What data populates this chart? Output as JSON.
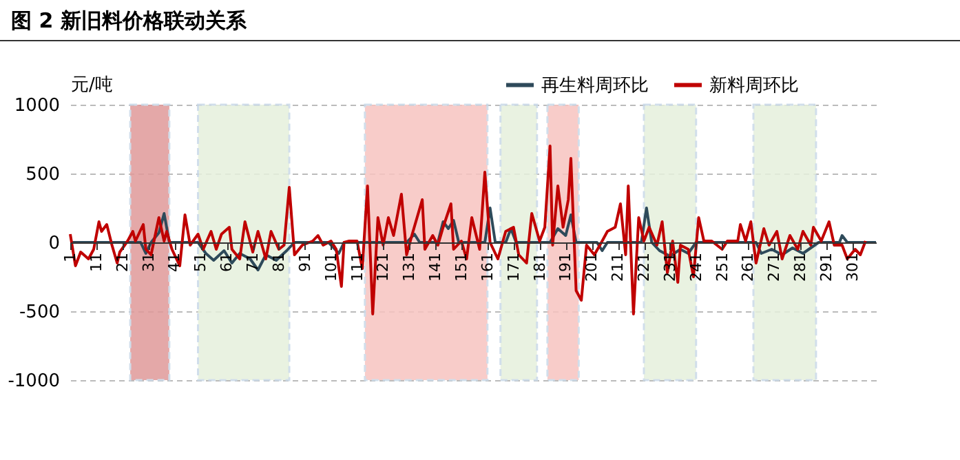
{
  "chart_data": {
    "type": "line",
    "title": "图 2 新旧料价格联动关系",
    "ylabel": "元/吨",
    "xlim": [
      1,
      310
    ],
    "xticks": [
      1,
      11,
      21,
      31,
      41,
      51,
      61,
      71,
      81,
      91,
      101,
      111,
      121,
      131,
      141,
      151,
      161,
      171,
      181,
      191,
      201,
      211,
      221,
      231,
      241,
      251,
      261,
      271,
      281,
      291,
      301
    ],
    "ylim": [
      -1000,
      1000
    ],
    "yticks": [
      -1000,
      -500,
      0,
      500,
      1000
    ],
    "grid": "y",
    "legend": "top right",
    "line_style": "solid",
    "marker": "none",
    "bands": [
      {
        "axis": "x",
        "from": 24,
        "to": 39,
        "color": "#e09a9a"
      },
      {
        "axis": "x",
        "from": 50,
        "to": 85,
        "color": "#e6f0dc"
      },
      {
        "axis": "x",
        "from": 114,
        "to": 161,
        "color": "#f7c4c0"
      },
      {
        "axis": "x",
        "from": 166,
        "to": 180,
        "color": "#e6f0dc"
      },
      {
        "axis": "x",
        "from": 184,
        "to": 196,
        "color": "#f7c4c0"
      },
      {
        "axis": "x",
        "from": 221,
        "to": 241,
        "color": "#e6f0dc"
      },
      {
        "axis": "x",
        "from": 263,
        "to": 287,
        "color": "#e6f0dc"
      }
    ],
    "series": [
      {
        "name": "再生料周环比",
        "color": "#2e4a5a",
        "x": [
          1,
          28,
          30,
          32,
          35,
          37,
          39,
          50,
          53,
          56,
          60,
          63,
          66,
          70,
          73,
          76,
          80,
          84,
          87,
          100,
          104,
          106,
          130,
          133,
          135,
          142,
          144,
          146,
          148,
          150,
          160,
          162,
          164,
          168,
          170,
          172,
          185,
          188,
          191,
          193,
          195,
          203,
          205,
          207,
          220,
          222,
          224,
          227,
          231,
          235,
          238,
          241,
          264,
          266,
          270,
          274,
          278,
          282,
          285,
          288,
          296,
          297,
          299,
          310
        ],
        "values": [
          0,
          0,
          -80,
          0,
          70,
          210,
          0,
          0,
          -80,
          -130,
          -60,
          -150,
          -80,
          -120,
          -200,
          -90,
          -130,
          -60,
          0,
          0,
          -80,
          0,
          0,
          60,
          0,
          0,
          150,
          100,
          160,
          0,
          0,
          250,
          0,
          0,
          100,
          0,
          0,
          100,
          50,
          200,
          0,
          0,
          -60,
          0,
          0,
          250,
          0,
          -60,
          -100,
          -50,
          -80,
          0,
          0,
          -80,
          -50,
          -90,
          -40,
          -80,
          -40,
          0,
          0,
          50,
          0,
          0
        ]
      },
      {
        "name": "新料周环比",
        "color": "#c00000",
        "x": [
          1,
          3,
          5,
          8,
          10,
          12,
          13,
          15,
          17,
          19,
          20,
          23,
          25,
          26,
          29,
          30,
          32,
          35,
          37,
          38,
          40,
          43,
          45,
          47,
          50,
          52,
          55,
          57,
          59,
          62,
          63,
          66,
          68,
          71,
          73,
          76,
          78,
          81,
          83,
          85,
          87,
          90,
          94,
          96,
          98,
          101,
          103,
          105,
          106,
          108,
          111,
          113,
          115,
          117,
          119,
          121,
          123,
          125,
          128,
          130,
          132,
          136,
          137,
          140,
          142,
          144,
          147,
          148,
          151,
          153,
          155,
          158,
          160,
          162,
          165,
          168,
          171,
          173,
          176,
          178,
          181,
          183,
          185,
          186,
          188,
          190,
          192,
          193,
          195,
          197,
          199,
          202,
          205,
          207,
          210,
          212,
          214,
          215,
          217,
          219,
          221,
          223,
          226,
          228,
          230,
          232,
          234,
          235,
          238,
          240,
          242,
          244,
          247,
          251,
          253,
          257,
          258,
          260,
          262,
          264,
          267,
          269,
          272,
          274,
          277,
          280,
          282,
          285,
          286,
          289,
          292,
          294,
          297,
          299,
          302,
          304,
          306
        ],
        "values": [
          60,
          -170,
          -70,
          -120,
          -50,
          150,
          80,
          130,
          -20,
          -150,
          -70,
          10,
          80,
          10,
          130,
          -50,
          -90,
          180,
          10,
          80,
          -50,
          -170,
          200,
          -20,
          60,
          -50,
          80,
          -50,
          60,
          110,
          -50,
          -120,
          150,
          -70,
          80,
          -120,
          80,
          -50,
          -20,
          400,
          -90,
          -20,
          10,
          50,
          -20,
          10,
          -50,
          -320,
          0,
          10,
          10,
          -190,
          410,
          -520,
          180,
          -20,
          180,
          50,
          350,
          -90,
          50,
          310,
          -50,
          50,
          -20,
          110,
          280,
          -50,
          10,
          -120,
          180,
          -50,
          510,
          0,
          -120,
          80,
          110,
          -90,
          -150,
          210,
          10,
          110,
          700,
          -20,
          410,
          110,
          310,
          610,
          -350,
          -420,
          -20,
          -90,
          10,
          80,
          110,
          280,
          -90,
          410,
          -520,
          180,
          10,
          110,
          -20,
          150,
          -220,
          10,
          -290,
          -20,
          -50,
          -250,
          180,
          10,
          10,
          -50,
          10,
          10,
          130,
          10,
          150,
          -150,
          100,
          -20,
          80,
          -120,
          50,
          -50,
          80,
          -20,
          110,
          10,
          150,
          -20,
          -20,
          -120,
          -50,
          -90,
          10
        ]
      }
    ]
  }
}
